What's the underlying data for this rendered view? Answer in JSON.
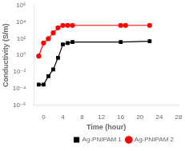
{
  "chart_data": {
    "type": "line",
    "xlabel": "Time (hour)",
    "ylabel": "Conductivity (S/m)",
    "log": "y",
    "grid": false,
    "legend": "lower right",
    "xlim": [
      -2,
      28
    ],
    "xticks": [
      0,
      4,
      8,
      12,
      16,
      20,
      24,
      28
    ],
    "ylim": [
      1e-06,
      1000000.0
    ],
    "yticks": [
      {
        "value": 1e-06,
        "label": "10⁻⁶"
      },
      {
        "value": 0.0001,
        "label": "10⁻⁴"
      },
      {
        "value": 0.01,
        "label": "10⁻²"
      },
      {
        "value": 1,
        "label": "10⁰"
      },
      {
        "value": 100.0,
        "label": "10²"
      },
      {
        "value": 10000.0,
        "label": "10⁴"
      },
      {
        "value": 1000000.0,
        "label": "10⁶"
      }
    ],
    "series": [
      {
        "name": "Ag-PNIPAM 1",
        "color": "#000000",
        "marker": "square",
        "x": [
          -1,
          0,
          1,
          2,
          3,
          4,
          5,
          6,
          16,
          22
        ],
        "values": [
          0.0003,
          0.0003,
          0.003,
          0.02,
          0.5,
          20.0,
          30.0,
          40.0,
          40.0,
          50.0
        ]
      },
      {
        "name": "Ag-PNIPAM 2",
        "color": "#ff0000",
        "marker": "circle",
        "x": [
          -1,
          0,
          1,
          2,
          3,
          4,
          5,
          6,
          16,
          17,
          22
        ],
        "values": [
          0.8,
          30.0,
          100.0,
          500.0,
          2000.0,
          4000.0,
          4000.0,
          4000.0,
          4000.0,
          4000.0,
          4000.0
        ]
      }
    ]
  }
}
